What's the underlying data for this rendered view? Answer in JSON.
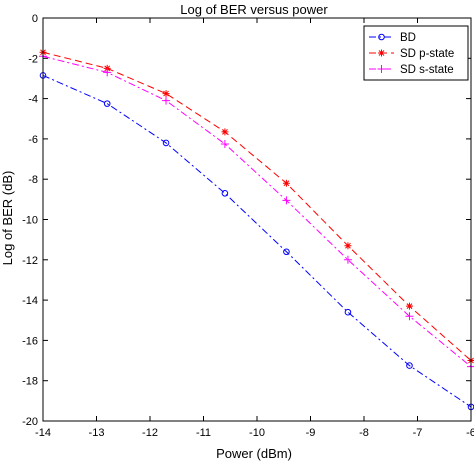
{
  "chart_data": {
    "type": "line",
    "title": "Log of BER versus power",
    "xlabel": "Power (dBm)",
    "ylabel": "Log of BER (dB)",
    "xlim": [
      -14,
      -6
    ],
    "ylim": [
      -20,
      0
    ],
    "xticks": [
      -14,
      -13,
      -12,
      -11,
      -10,
      -9,
      -8,
      -7,
      -6
    ],
    "yticks": [
      0,
      -2,
      -4,
      -6,
      -8,
      -10,
      -12,
      -14,
      -16,
      -18,
      -20
    ],
    "grid": false,
    "legend_position": "top-right",
    "series": [
      {
        "name": "BD",
        "color": "#0000ff",
        "marker": "circle",
        "line_style": "dash-dot",
        "x": [
          -14,
          -12.8,
          -11.7,
          -10.6,
          -9.45,
          -8.3,
          -7.15,
          -6
        ],
        "y": [
          -2.85,
          -4.25,
          -6.2,
          -8.7,
          -11.6,
          -14.6,
          -17.25,
          -19.3
        ]
      },
      {
        "name": "SD p-state",
        "color": "#ff0000",
        "marker": "star",
        "line_style": "dashed",
        "x": [
          -14,
          -12.8,
          -11.7,
          -10.6,
          -9.45,
          -8.3,
          -7.15,
          -6
        ],
        "y": [
          -1.7,
          -2.5,
          -3.75,
          -5.65,
          -8.2,
          -11.3,
          -14.3,
          -17.0
        ]
      },
      {
        "name": "SD s-state",
        "color": "#ff00ff",
        "marker": "plus",
        "line_style": "dash-dot",
        "x": [
          -14,
          -12.8,
          -11.7,
          -10.6,
          -9.45,
          -8.3,
          -7.15,
          -6
        ],
        "y": [
          -1.9,
          -2.7,
          -4.1,
          -6.25,
          -9.05,
          -12.0,
          -14.8,
          -17.3
        ]
      }
    ]
  }
}
